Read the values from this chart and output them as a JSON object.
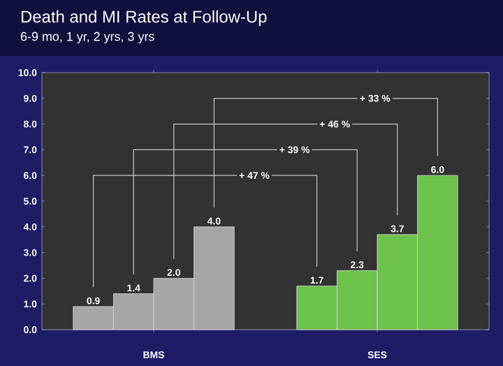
{
  "chart_data": {
    "type": "bar",
    "title": "Death and MI Rates at Follow-Up",
    "subtitle": "6-9 mo, 1 yr, 2 yrs, 3 yrs",
    "categories": [
      "BMS",
      "SES"
    ],
    "series": [
      {
        "values": [
          0.9,
          1.7
        ],
        "value_labels": [
          "0.9",
          "1.7"
        ],
        "colors": [
          "#a6a6a6",
          "#6cc24a"
        ]
      },
      {
        "values": [
          1.4,
          2.3
        ],
        "value_labels": [
          "1.4",
          "2.3"
        ],
        "colors": [
          "#a6a6a6",
          "#6cc24a"
        ]
      },
      {
        "values": [
          2.0,
          3.7
        ],
        "value_labels": [
          "2.0",
          "3.7"
        ],
        "colors": [
          "#a6a6a6",
          "#6cc24a"
        ]
      },
      {
        "values": [
          4.0,
          6.0
        ],
        "value_labels": [
          "4.0",
          "6.0"
        ],
        "colors": [
          "#a6a6a6",
          "#6cc24a"
        ]
      }
    ],
    "ylim": [
      0,
      10
    ],
    "yticks": [
      {
        "value": 0,
        "label": "0.0"
      },
      {
        "value": 1,
        "label": "1.0"
      },
      {
        "value": 2,
        "label": "2.0"
      },
      {
        "value": 3,
        "label": "3.0"
      },
      {
        "value": 4,
        "label": "4.0"
      },
      {
        "value": 5,
        "label": "5.0"
      },
      {
        "value": 6,
        "label": "6.0"
      },
      {
        "value": 7,
        "label": "7.0"
      },
      {
        "value": 8,
        "label": "8.0"
      },
      {
        "value": 9,
        "label": "9.0"
      },
      {
        "value": 10,
        "label": "10.0"
      }
    ],
    "annotations": [
      {
        "text": "+ 47 %",
        "y": 6.0
      },
      {
        "text": "+ 39 %",
        "y": 7.0
      },
      {
        "text": "+ 46 %",
        "y": 8.0
      },
      {
        "text": "+ 33 %",
        "y": 9.0
      }
    ]
  }
}
